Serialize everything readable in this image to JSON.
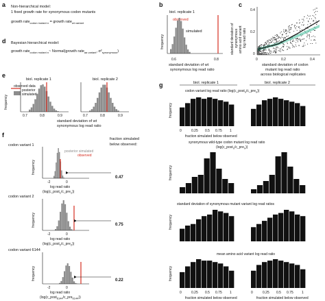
{
  "panels": {
    "a": {
      "letter": "a",
      "title": "Non-hierarchical model:",
      "line1": "1 fixed growth rate for synonymous codon mutants",
      "eq_main": "growth rate",
      "eq_sub1": "codon mutant n",
      "eq_mid": " = growth rate",
      "eq_sub2": "wt variant"
    },
    "b": {
      "letter": "b",
      "legend_title": "biol. replicate 1",
      "label_simulated": "simulated",
      "label_observed": "observed",
      "ylabel": "frequency",
      "xlabel_line1": "standard deviation of wt",
      "xlabel_line2": "synonymous log read ratio",
      "xticks": [
        "0.6",
        "0.8"
      ]
    },
    "c": {
      "letter": "c",
      "ylabel_lines": [
        "standard deviation of",
        "synonymous",
        "amino acid variant",
        "log read ratio"
      ],
      "xlabel_lines": [
        "standard deviation of codon",
        "mutant log read ratio",
        "across biological replicates"
      ],
      "xticks": [
        "0",
        "0.2",
        "0.4"
      ],
      "yticks": [
        "0",
        "0.2",
        "0.4"
      ]
    },
    "d": {
      "letter": "d",
      "title": "Bayesian hierarchical model:",
      "eq_main": "growth rate",
      "eq_sub1": "codon mutant n",
      "eq_mid": "~ Normal(growth rate",
      "eq_sub2": "aa variant",
      "eq_tail": ", σ²",
      "eq_sub3": "synonymous",
      "eq_close": ")"
    },
    "e": {
      "letter": "e",
      "left_title": "biol. replicate 1",
      "right_title": "biol. replicate 2",
      "legend_observed": "observed data",
      "legend_posterior": "posterior",
      "legend_simulated": "simulated",
      "ylabel": "frequency",
      "xlabel_line1": "standard deviation of wt",
      "xlabel_line2": "synonymous log read ratio",
      "left_xticks": [
        "0.7",
        "0.8",
        "0.9"
      ],
      "right_xticks": [
        "0.7",
        "0.8",
        "0.9"
      ]
    },
    "f": {
      "letter": "f",
      "fraction_header": [
        "fraction simulated",
        "below observed:"
      ],
      "legend_posterior": "posterior simulated",
      "legend_observed": "observed",
      "ylabel": "frequency",
      "xlabel_line1": "log read ratio",
      "xlabel_line2": "(log(c_post",
      "xlabel_tail": "/c_pre",
      "variants": [
        {
          "title": "codon variant 1",
          "fraction": "0.47",
          "xticks": [
            "-2",
            "0"
          ],
          "sub": "1"
        },
        {
          "title": "codon variant 2",
          "fraction": "0.75",
          "xticks": [
            "-2",
            "0"
          ],
          "sub": "2"
        },
        {
          "title": "codon variant 6144",
          "fraction": "0.22",
          "xticks": [
            "-2",
            "0"
          ],
          "sub": "6144"
        }
      ]
    },
    "g": {
      "letter": "g",
      "col1": "biol. replicate 1",
      "col2": "biol. replicate 2",
      "ylabel": "frequency",
      "xlabel": "fraction simulated below observed",
      "xticks": [
        "0",
        "0.25",
        "0.5",
        "0.75",
        "1"
      ],
      "rows": [
        {
          "title": "codon variant log read ratio (log(c_post",
          "title_sub": "n",
          "title_mid": "/c_pre",
          "title_end": "n",
          "title_close": "))"
        },
        {
          "title": "synonymous wild-type codon mutant log read ratio",
          "title_line2": "(log(c_post",
          "title_sub": "n",
          "title_mid": "/c_pre",
          "title_end": "n",
          "title_close": "))"
        },
        {
          "title": "standard deviation of synonymous mutant variant log read ratios"
        },
        {
          "title": "mean amino acid variant log read ratio"
        }
      ]
    }
  },
  "colors": {
    "histogram_black": "#111111",
    "histogram_gray": "#8c8c8c",
    "observed_red": "#d62b1e",
    "fit_line": "#1a1a1a",
    "fit_band": "#3fbf9a"
  }
}
